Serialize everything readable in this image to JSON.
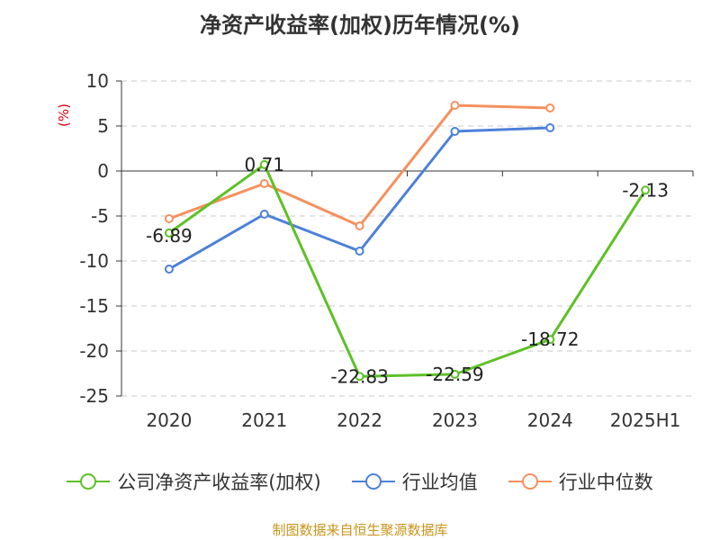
{
  "chart_data": {
    "type": "line",
    "title": "净资产收益率(加权)历年情况(%)",
    "ylabel": "(%)",
    "categories": [
      "2020",
      "2021",
      "2022",
      "2023",
      "2024",
      "2025H1"
    ],
    "ylim": [
      -25,
      10
    ],
    "yticks": [
      10,
      5,
      0,
      -5,
      -10,
      -15,
      -20,
      -25
    ],
    "grid": true,
    "legend_position": "bottom",
    "series": [
      {
        "name": "公司净资产收益率(加权)",
        "color": "#5dc126",
        "values": [
          -6.89,
          0.71,
          -22.83,
          -22.59,
          -18.72,
          -2.13
        ],
        "labels": [
          "-6.89",
          "0.71",
          "-22.83",
          "-22.59",
          "-18.72",
          "-2.13"
        ]
      },
      {
        "name": "行业均值",
        "color": "#4d80d9",
        "values": [
          -10.9,
          -4.8,
          -8.9,
          4.4,
          4.8,
          null
        ]
      },
      {
        "name": "行业中位数",
        "color": "#f5905e",
        "values": [
          -5.3,
          -1.4,
          -6.1,
          7.3,
          7.0,
          null
        ]
      }
    ]
  },
  "source": "制图数据来自恒生聚源数据库"
}
